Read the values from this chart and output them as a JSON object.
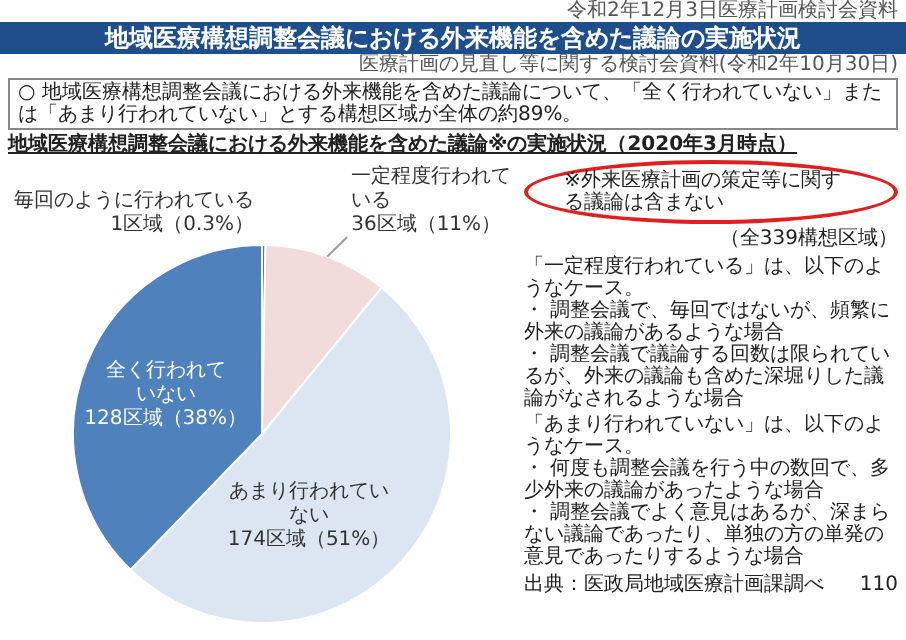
{
  "chart_data": {
    "type": "pie",
    "title": "地域医療構想調整会議における外来機能を含めた議論の実施状況",
    "subtitle": "地域医療構想調整会議における外来機能を含めた議論※の実施状況（2020年3月時点）",
    "categories": [
      "毎回のように行われている",
      "一定程度行われている",
      "あまり行われていない",
      "全く行われていない"
    ],
    "values": [
      1,
      36,
      174,
      128
    ],
    "value_labels": [
      "1区域（0.3%）",
      "36区域（11%）",
      "174区域（51%）",
      "128区域（38%）"
    ],
    "colors": [
      "#c0504d",
      "#f2dcdb",
      "#dce6f2",
      "#4f81bd"
    ],
    "legend": false,
    "annotations": [
      "令和2年12月3日医療計画検討会資料",
      "医療計画の見直し等に関する検討会資料(令和2年10月30日)",
      "○ 地域医療構想調整会議における外来機能を含めた議論について、「全く行われていない」または「あまり行われていない」とする構想区域が全体の約89%。",
      "※外来医療計画の策定等に関する議論は含まない",
      "（全339構想区域）",
      "「一定程度行われている」は、以下のようなケース。",
      "・ 調整会議で、毎回ではないが、頻繁に外来の議論があるような場合",
      "・ 調整会議で議論する回数は限られているが、外来の議論も含めた深堀りした議論がなされるような場合",
      "「あまり行われていない」は、以下のようなケース。",
      "・ 何度も調整会議を行う中の数回で、多少外来の議論があったような場合",
      "・ 調整会議でよく意見はあるが、深まらない議論であったり、単独の方の単発の意見であったりするような場合",
      "出典：医政局地域医療計画課調べ",
      "110"
    ]
  }
}
